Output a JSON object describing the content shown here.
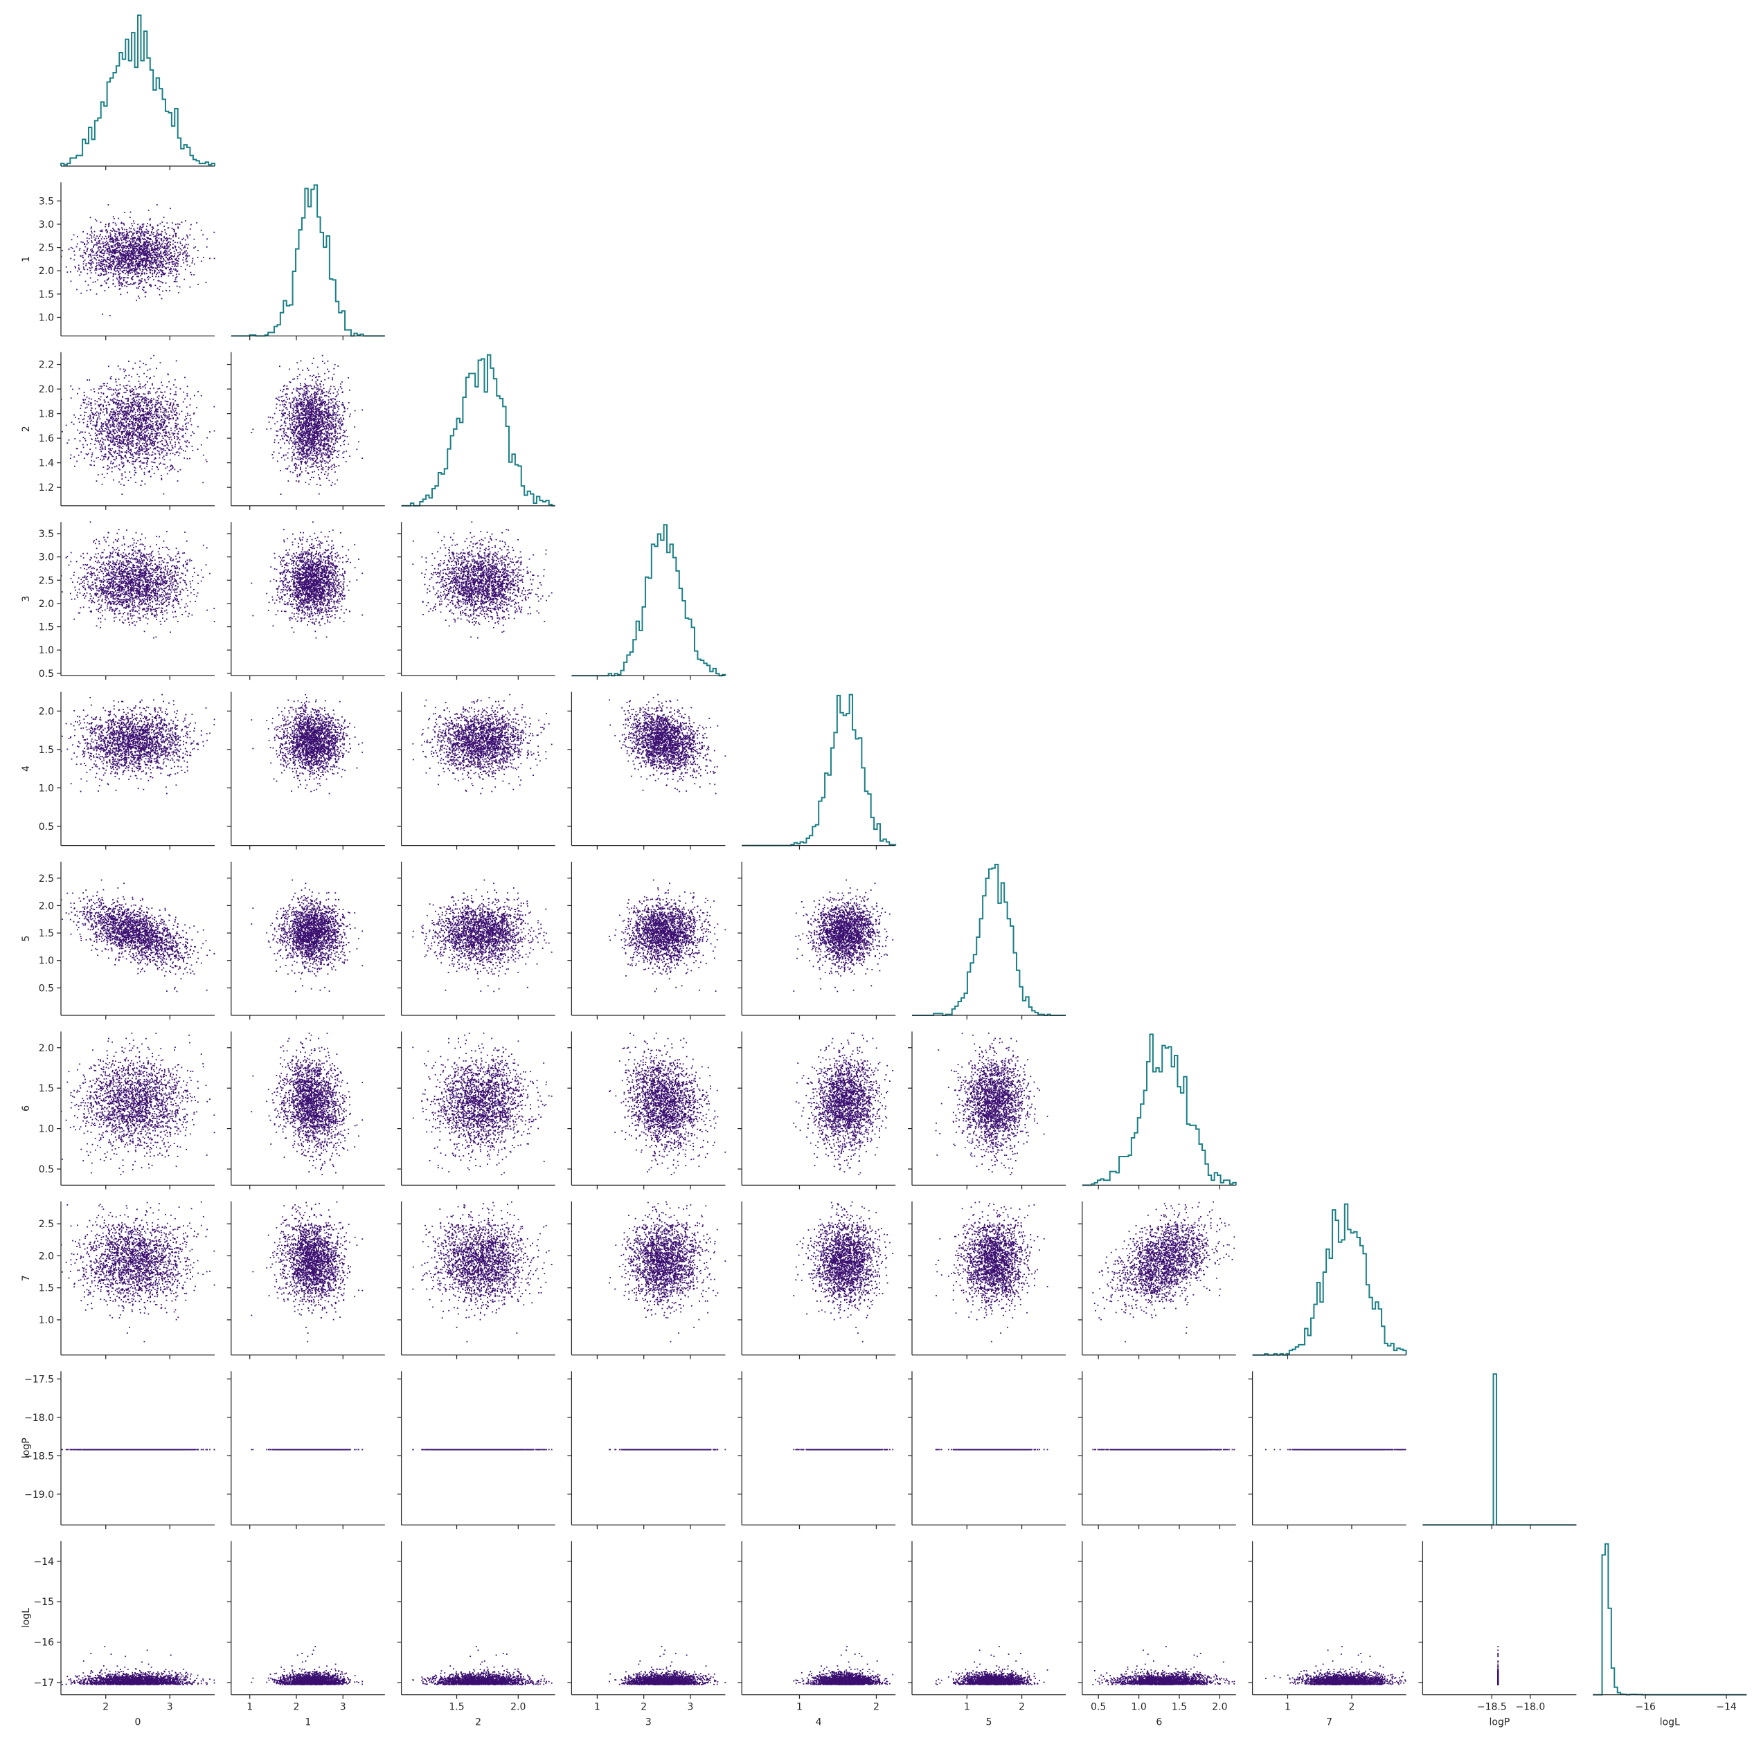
{
  "chart_data": {
    "type": "scatter",
    "subtype": "corner-plot",
    "title": "",
    "variables": [
      {
        "name": "0",
        "range": [
          1.3,
          3.7
        ],
        "ticks": [
          2,
          3
        ],
        "tick_labels": [
          "2",
          "3"
        ],
        "mean": 2.45,
        "sd": 0.4
      },
      {
        "name": "1",
        "range": [
          0.6,
          3.9
        ],
        "ticks": [
          1,
          2,
          3
        ],
        "tick_labels": [
          "1",
          "2",
          "3"
        ],
        "mean": 2.35,
        "sd": 0.32
      },
      {
        "name": "2",
        "range": [
          1.05,
          2.3
        ],
        "ticks": [
          1.5,
          2.0
        ],
        "tick_labels": [
          "1.5",
          "2.0"
        ],
        "mean": 1.7,
        "sd": 0.18
      },
      {
        "name": "3",
        "range": [
          0.45,
          3.75
        ],
        "ticks": [
          1,
          2,
          3
        ],
        "tick_labels": [
          "1",
          "2",
          "3"
        ],
        "mean": 2.45,
        "sd": 0.38
      },
      {
        "name": "4",
        "range": [
          0.25,
          2.25
        ],
        "ticks": [
          1,
          2
        ],
        "tick_labels": [
          "1",
          "2"
        ],
        "mean": 1.6,
        "sd": 0.2
      },
      {
        "name": "5",
        "range": [
          0.0,
          2.8
        ],
        "ticks": [
          1,
          2
        ],
        "tick_labels": [
          "1",
          "2"
        ],
        "mean": 1.5,
        "sd": 0.28
      },
      {
        "name": "6",
        "range": [
          0.3,
          2.2
        ],
        "ticks": [
          0.5,
          1.0,
          1.5,
          2.0
        ],
        "tick_labels": [
          "0.5",
          "1.0",
          "1.5",
          "2.0"
        ],
        "mean": 1.3,
        "sd": 0.28
      },
      {
        "name": "7",
        "range": [
          0.45,
          2.85
        ],
        "ticks": [
          1,
          2
        ],
        "tick_labels": [
          "1",
          "2"
        ],
        "mean": 1.9,
        "sd": 0.32
      },
      {
        "name": "logP",
        "range": [
          -19.4,
          -17.4
        ],
        "ticks": [
          -18.5,
          -18.0
        ],
        "tick_labels": [
          "−18.5",
          "−18.0"
        ],
        "mean": -18.42,
        "sd": 0.0
      },
      {
        "name": "logL",
        "range": [
          -17.3,
          -13.5
        ],
        "ticks": [
          -16,
          -14
        ],
        "tick_labels": [
          "−16",
          "−14"
        ],
        "mean": -17.05,
        "sd": 0.12
      }
    ],
    "row_axis_ticks": {
      "1": {
        "ticks": [
          1.0,
          1.5,
          2.0,
          2.5,
          3.0,
          3.5
        ],
        "tick_labels": [
          "1.0",
          "1.5",
          "2.0",
          "2.5",
          "3.0",
          "3.5"
        ]
      },
      "2": {
        "ticks": [
          1.2,
          1.4,
          1.6,
          1.8,
          2.0,
          2.2
        ],
        "tick_labels": [
          "1.2",
          "1.4",
          "1.6",
          "1.8",
          "2.0",
          "2.2"
        ]
      },
      "3": {
        "ticks": [
          0.5,
          1.0,
          1.5,
          2.0,
          2.5,
          3.0,
          3.5
        ],
        "tick_labels": [
          "0.5",
          "1.0",
          "1.5",
          "2.0",
          "2.5",
          "3.0",
          "3.5"
        ]
      },
      "4": {
        "ticks": [
          0.5,
          1.0,
          1.5,
          2.0
        ],
        "tick_labels": [
          "0.5",
          "1.0",
          "1.5",
          "2.0"
        ]
      },
      "5": {
        "ticks": [
          0.5,
          1.0,
          1.5,
          2.0,
          2.5
        ],
        "tick_labels": [
          "0.5",
          "1.0",
          "1.5",
          "2.0",
          "2.5"
        ]
      },
      "6": {
        "ticks": [
          0.5,
          1.0,
          1.5,
          2.0
        ],
        "tick_labels": [
          "0.5",
          "1.0",
          "1.5",
          "2.0"
        ]
      },
      "7": {
        "ticks": [
          1.0,
          1.5,
          2.0,
          2.5
        ],
        "tick_labels": [
          "1.0",
          "1.5",
          "2.0",
          "2.5"
        ]
      },
      "logP": {
        "ticks": [
          -19.0,
          -18.5,
          -18.0,
          -17.5
        ],
        "tick_labels": [
          "−19.0",
          "−18.5",
          "−18.0",
          "−17.5"
        ]
      },
      "logL": {
        "ticks": [
          -17,
          -16,
          -15,
          -14
        ],
        "tick_labels": [
          "−17",
          "−16",
          "−15",
          "−14"
        ]
      }
    },
    "correlations": [
      {
        "x": "0",
        "y": "5",
        "r": -0.55
      },
      {
        "x": "1",
        "y": "6",
        "r": -0.2
      },
      {
        "x": "3",
        "y": "4",
        "r": -0.25
      },
      {
        "x": "6",
        "y": "7",
        "r": 0.45
      },
      {
        "x": "3",
        "y": "6",
        "r": -0.2
      }
    ],
    "sample_count": 2000,
    "point_color": "#3b0f70",
    "highlight_point_color": "#fde725",
    "hist_color": "#1b7f86",
    "grid": false,
    "legend": "none"
  }
}
